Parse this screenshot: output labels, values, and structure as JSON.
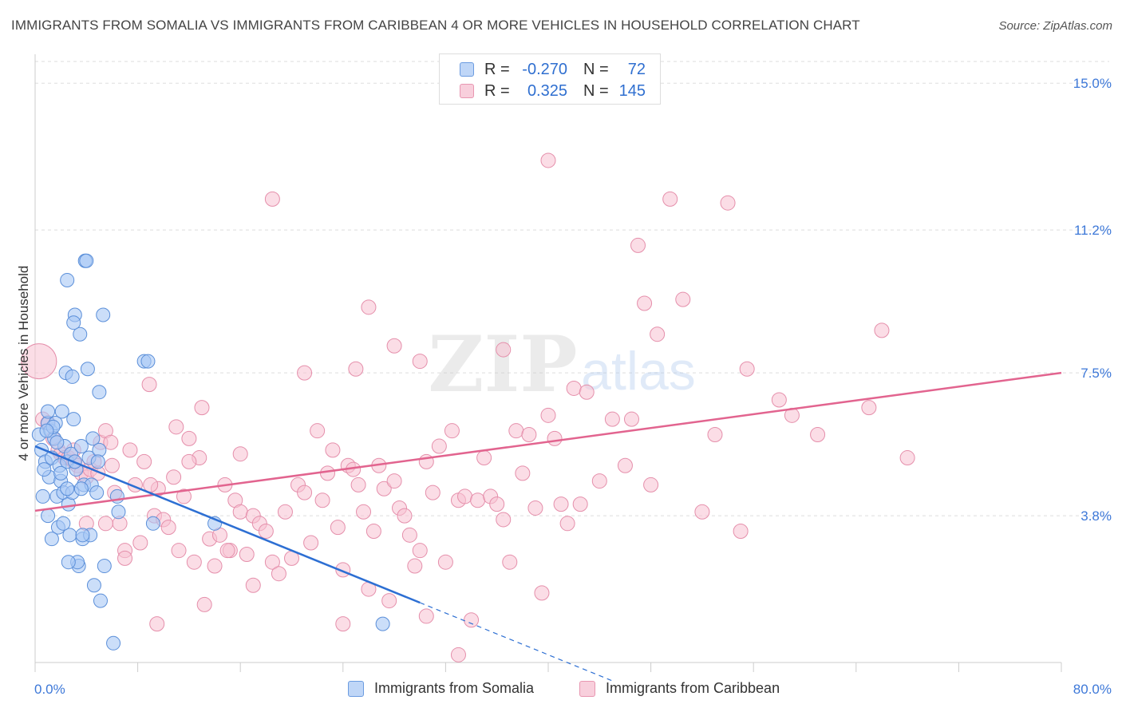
{
  "title": "IMMIGRANTS FROM SOMALIA VS IMMIGRANTS FROM CARIBBEAN 4 OR MORE VEHICLES IN HOUSEHOLD CORRELATION CHART",
  "source": "Source: ZipAtlas.com",
  "watermark": {
    "zip": "ZIP",
    "atlas": "atlas"
  },
  "legend": {
    "rows": [
      {
        "r_label": "R =",
        "r_value": "-0.270",
        "n_label": "N =",
        "n_value": "72"
      },
      {
        "r_label": "R =",
        "r_value": "0.325",
        "n_label": "N =",
        "n_value": "145"
      }
    ]
  },
  "bottom_legend": [
    "Immigrants from Somalia",
    "Immigrants from Caribbean"
  ],
  "colors": {
    "somalia_fill": "#a9c8f5",
    "somalia_stroke": "#5b8fd9",
    "somalia_line": "#2d6fd3",
    "caribbean_fill": "#f7c1d2",
    "caribbean_stroke": "#e58fab",
    "caribbean_line": "#e2648f",
    "axis_label": "#3d78d8",
    "grid": "#dddddd"
  },
  "chart_data": {
    "type": "scatter",
    "title": "IMMIGRANTS FROM SOMALIA VS IMMIGRANTS FROM CARIBBEAN 4 OR MORE VEHICLES IN HOUSEHOLD CORRELATION CHART",
    "xlabel": "",
    "ylabel": "4 or more Vehicles in Household",
    "xlim": [
      0,
      80
    ],
    "ylim": [
      0,
      15.5
    ],
    "x_tick_labels": [
      "0.0%",
      "80.0%"
    ],
    "y_ticks": [
      3.8,
      7.5,
      11.2,
      15.0
    ],
    "y_tick_labels": [
      "3.8%",
      "7.5%",
      "11.2%",
      "15.0%"
    ],
    "series": [
      {
        "name": "Immigrants from Somalia",
        "R": -0.27,
        "N": 72,
        "trend": {
          "x0": 0,
          "y0": 5.6,
          "x1": 30,
          "y1": 1.55,
          "dash_to_x": 45
        },
        "points": [
          [
            0.3,
            5.9
          ],
          [
            0.5,
            5.5
          ],
          [
            0.6,
            4.3
          ],
          [
            0.8,
            5.2
          ],
          [
            1.0,
            6.2
          ],
          [
            1.1,
            4.8
          ],
          [
            1.2,
            6.0
          ],
          [
            1.3,
            5.3
          ],
          [
            1.5,
            5.8
          ],
          [
            1.6,
            6.2
          ],
          [
            1.7,
            4.3
          ],
          [
            1.8,
            3.5
          ],
          [
            1.9,
            5.1
          ],
          [
            2.0,
            4.7
          ],
          [
            2.1,
            6.5
          ],
          [
            2.2,
            4.4
          ],
          [
            2.3,
            5.6
          ],
          [
            2.4,
            7.5
          ],
          [
            2.5,
            5.2
          ],
          [
            2.6,
            4.1
          ],
          [
            2.7,
            3.3
          ],
          [
            2.8,
            5.4
          ],
          [
            2.9,
            4.4
          ],
          [
            3.0,
            6.3
          ],
          [
            3.1,
            9.0
          ],
          [
            3.2,
            5.0
          ],
          [
            3.4,
            2.5
          ],
          [
            3.5,
            8.5
          ],
          [
            3.6,
            5.6
          ],
          [
            3.7,
            3.2
          ],
          [
            3.8,
            4.6
          ],
          [
            3.9,
            10.4
          ],
          [
            4.1,
            7.6
          ],
          [
            4.2,
            5.3
          ],
          [
            4.3,
            3.3
          ],
          [
            4.4,
            4.6
          ],
          [
            4.5,
            5.8
          ],
          [
            4.6,
            2.0
          ],
          [
            4.8,
            4.4
          ],
          [
            5.0,
            5.5
          ],
          [
            5.3,
            9.0
          ],
          [
            5.4,
            2.5
          ],
          [
            6.1,
            0.5
          ],
          [
            6.4,
            4.3
          ],
          [
            6.5,
            3.9
          ],
          [
            8.5,
            7.8
          ],
          [
            9.2,
            3.6
          ],
          [
            14.0,
            3.6
          ],
          [
            27.1,
            1.0
          ],
          [
            1.0,
            3.8
          ],
          [
            2.9,
            7.4
          ],
          [
            4.0,
            10.4
          ],
          [
            2.5,
            9.9
          ],
          [
            3.0,
            8.8
          ],
          [
            1.4,
            6.1
          ],
          [
            2.2,
            3.6
          ],
          [
            3.3,
            2.6
          ],
          [
            0.7,
            5.0
          ],
          [
            5.0,
            7.0
          ],
          [
            8.8,
            7.8
          ],
          [
            1.0,
            6.5
          ],
          [
            2.5,
            4.5
          ],
          [
            3.6,
            4.5
          ],
          [
            3.7,
            3.3
          ],
          [
            1.7,
            5.7
          ],
          [
            0.9,
            6.0
          ],
          [
            2.0,
            4.9
          ],
          [
            4.9,
            5.2
          ],
          [
            3.1,
            5.2
          ],
          [
            5.1,
            1.6
          ],
          [
            2.6,
            2.6
          ],
          [
            1.3,
            3.2
          ]
        ]
      },
      {
        "name": "Immigrants from Caribbean",
        "R": 0.325,
        "N": 145,
        "trend": {
          "x0": 0,
          "y0": 3.93,
          "x1": 80,
          "y1": 7.5
        },
        "points": [
          [
            0.3,
            7.8
          ],
          [
            0.6,
            6.3
          ],
          [
            1.0,
            6.2
          ],
          [
            1.4,
            5.8
          ],
          [
            1.8,
            5.5
          ],
          [
            2.0,
            5.4
          ],
          [
            2.3,
            5.3
          ],
          [
            2.6,
            5.3
          ],
          [
            3.0,
            5.2
          ],
          [
            3.3,
            5.1
          ],
          [
            3.6,
            4.9
          ],
          [
            4.0,
            4.8
          ],
          [
            4.3,
            5.0
          ],
          [
            4.6,
            5.2
          ],
          [
            4.9,
            4.9
          ],
          [
            5.1,
            5.7
          ],
          [
            5.5,
            6.0
          ],
          [
            5.9,
            5.7
          ],
          [
            6.2,
            4.4
          ],
          [
            6.6,
            3.6
          ],
          [
            7.0,
            2.9
          ],
          [
            7.4,
            5.5
          ],
          [
            7.8,
            4.6
          ],
          [
            8.2,
            3.1
          ],
          [
            8.5,
            5.2
          ],
          [
            8.9,
            7.2
          ],
          [
            9.3,
            3.8
          ],
          [
            9.6,
            4.5
          ],
          [
            10.0,
            3.7
          ],
          [
            10.4,
            3.5
          ],
          [
            10.8,
            4.8
          ],
          [
            11.2,
            2.9
          ],
          [
            11.6,
            4.3
          ],
          [
            12.0,
            5.8
          ],
          [
            12.4,
            2.6
          ],
          [
            12.8,
            5.3
          ],
          [
            13.2,
            1.5
          ],
          [
            13.6,
            3.2
          ],
          [
            14.0,
            2.5
          ],
          [
            14.4,
            3.3
          ],
          [
            14.8,
            4.6
          ],
          [
            15.2,
            2.9
          ],
          [
            15.6,
            4.2
          ],
          [
            16.0,
            3.9
          ],
          [
            16.5,
            2.8
          ],
          [
            17.0,
            3.8
          ],
          [
            17.5,
            3.6
          ],
          [
            18.0,
            3.4
          ],
          [
            18.5,
            2.6
          ],
          [
            19.0,
            2.3
          ],
          [
            19.5,
            3.9
          ],
          [
            20.0,
            2.7
          ],
          [
            20.5,
            4.6
          ],
          [
            21.0,
            4.4
          ],
          [
            21.5,
            3.1
          ],
          [
            22.0,
            6.0
          ],
          [
            22.4,
            4.2
          ],
          [
            22.8,
            4.9
          ],
          [
            23.2,
            5.5
          ],
          [
            23.6,
            3.5
          ],
          [
            24.0,
            2.4
          ],
          [
            24.4,
            5.1
          ],
          [
            24.8,
            5.0
          ],
          [
            25.2,
            4.6
          ],
          [
            25.6,
            3.9
          ],
          [
            26.0,
            1.9
          ],
          [
            26.4,
            3.4
          ],
          [
            26.8,
            5.1
          ],
          [
            27.2,
            4.5
          ],
          [
            27.6,
            1.6
          ],
          [
            28.0,
            4.7
          ],
          [
            28.4,
            4.0
          ],
          [
            28.8,
            3.8
          ],
          [
            29.2,
            3.3
          ],
          [
            29.6,
            2.5
          ],
          [
            30.0,
            2.9
          ],
          [
            30.5,
            5.2
          ],
          [
            31.0,
            4.4
          ],
          [
            31.5,
            5.6
          ],
          [
            32.0,
            2.6
          ],
          [
            32.5,
            6.0
          ],
          [
            33.0,
            4.2
          ],
          [
            33.5,
            4.3
          ],
          [
            34.0,
            1.1
          ],
          [
            34.5,
            4.2
          ],
          [
            35.0,
            5.3
          ],
          [
            35.5,
            4.3
          ],
          [
            36.0,
            4.1
          ],
          [
            36.5,
            3.7
          ],
          [
            37.0,
            2.6
          ],
          [
            37.5,
            6.0
          ],
          [
            38.0,
            4.9
          ],
          [
            38.5,
            5.9
          ],
          [
            39.0,
            4.0
          ],
          [
            39.5,
            1.8
          ],
          [
            40.0,
            6.4
          ],
          [
            40.5,
            5.8
          ],
          [
            41.0,
            4.1
          ],
          [
            41.5,
            3.6
          ],
          [
            42.0,
            7.1
          ],
          [
            42.5,
            4.1
          ],
          [
            43.0,
            7.0
          ],
          [
            44.0,
            4.7
          ],
          [
            45.0,
            6.3
          ],
          [
            46.0,
            5.1
          ],
          [
            46.5,
            6.3
          ],
          [
            47.0,
            10.8
          ],
          [
            47.5,
            9.3
          ],
          [
            48.0,
            4.6
          ],
          [
            48.5,
            8.5
          ],
          [
            49.5,
            12.0
          ],
          [
            50.5,
            9.4
          ],
          [
            52.0,
            3.9
          ],
          [
            53.0,
            5.9
          ],
          [
            54.0,
            11.9
          ],
          [
            55.0,
            3.4
          ],
          [
            55.5,
            7.6
          ],
          [
            58.0,
            6.8
          ],
          [
            59.0,
            6.4
          ],
          [
            61.0,
            5.9
          ],
          [
            65.0,
            6.6
          ],
          [
            66.0,
            8.6
          ],
          [
            68.0,
            5.3
          ],
          [
            40.0,
            13.0
          ],
          [
            18.5,
            12.0
          ],
          [
            26.0,
            9.2
          ],
          [
            28.0,
            8.2
          ],
          [
            30.0,
            7.8
          ],
          [
            25.0,
            7.6
          ],
          [
            21.0,
            7.5
          ],
          [
            16.0,
            5.4
          ],
          [
            13.0,
            6.6
          ],
          [
            11.0,
            6.1
          ],
          [
            9.0,
            4.6
          ],
          [
            7.0,
            2.7
          ],
          [
            5.5,
            3.6
          ],
          [
            4.0,
            3.6
          ],
          [
            12.0,
            5.2
          ],
          [
            15.0,
            2.9
          ],
          [
            17.0,
            2.0
          ],
          [
            24.0,
            1.0
          ],
          [
            30.5,
            1.2
          ],
          [
            33.0,
            0.2
          ],
          [
            3.0,
            5.5
          ],
          [
            6.0,
            5.1
          ],
          [
            9.5,
            1.0
          ],
          [
            36.5,
            8.1
          ]
        ]
      }
    ]
  }
}
